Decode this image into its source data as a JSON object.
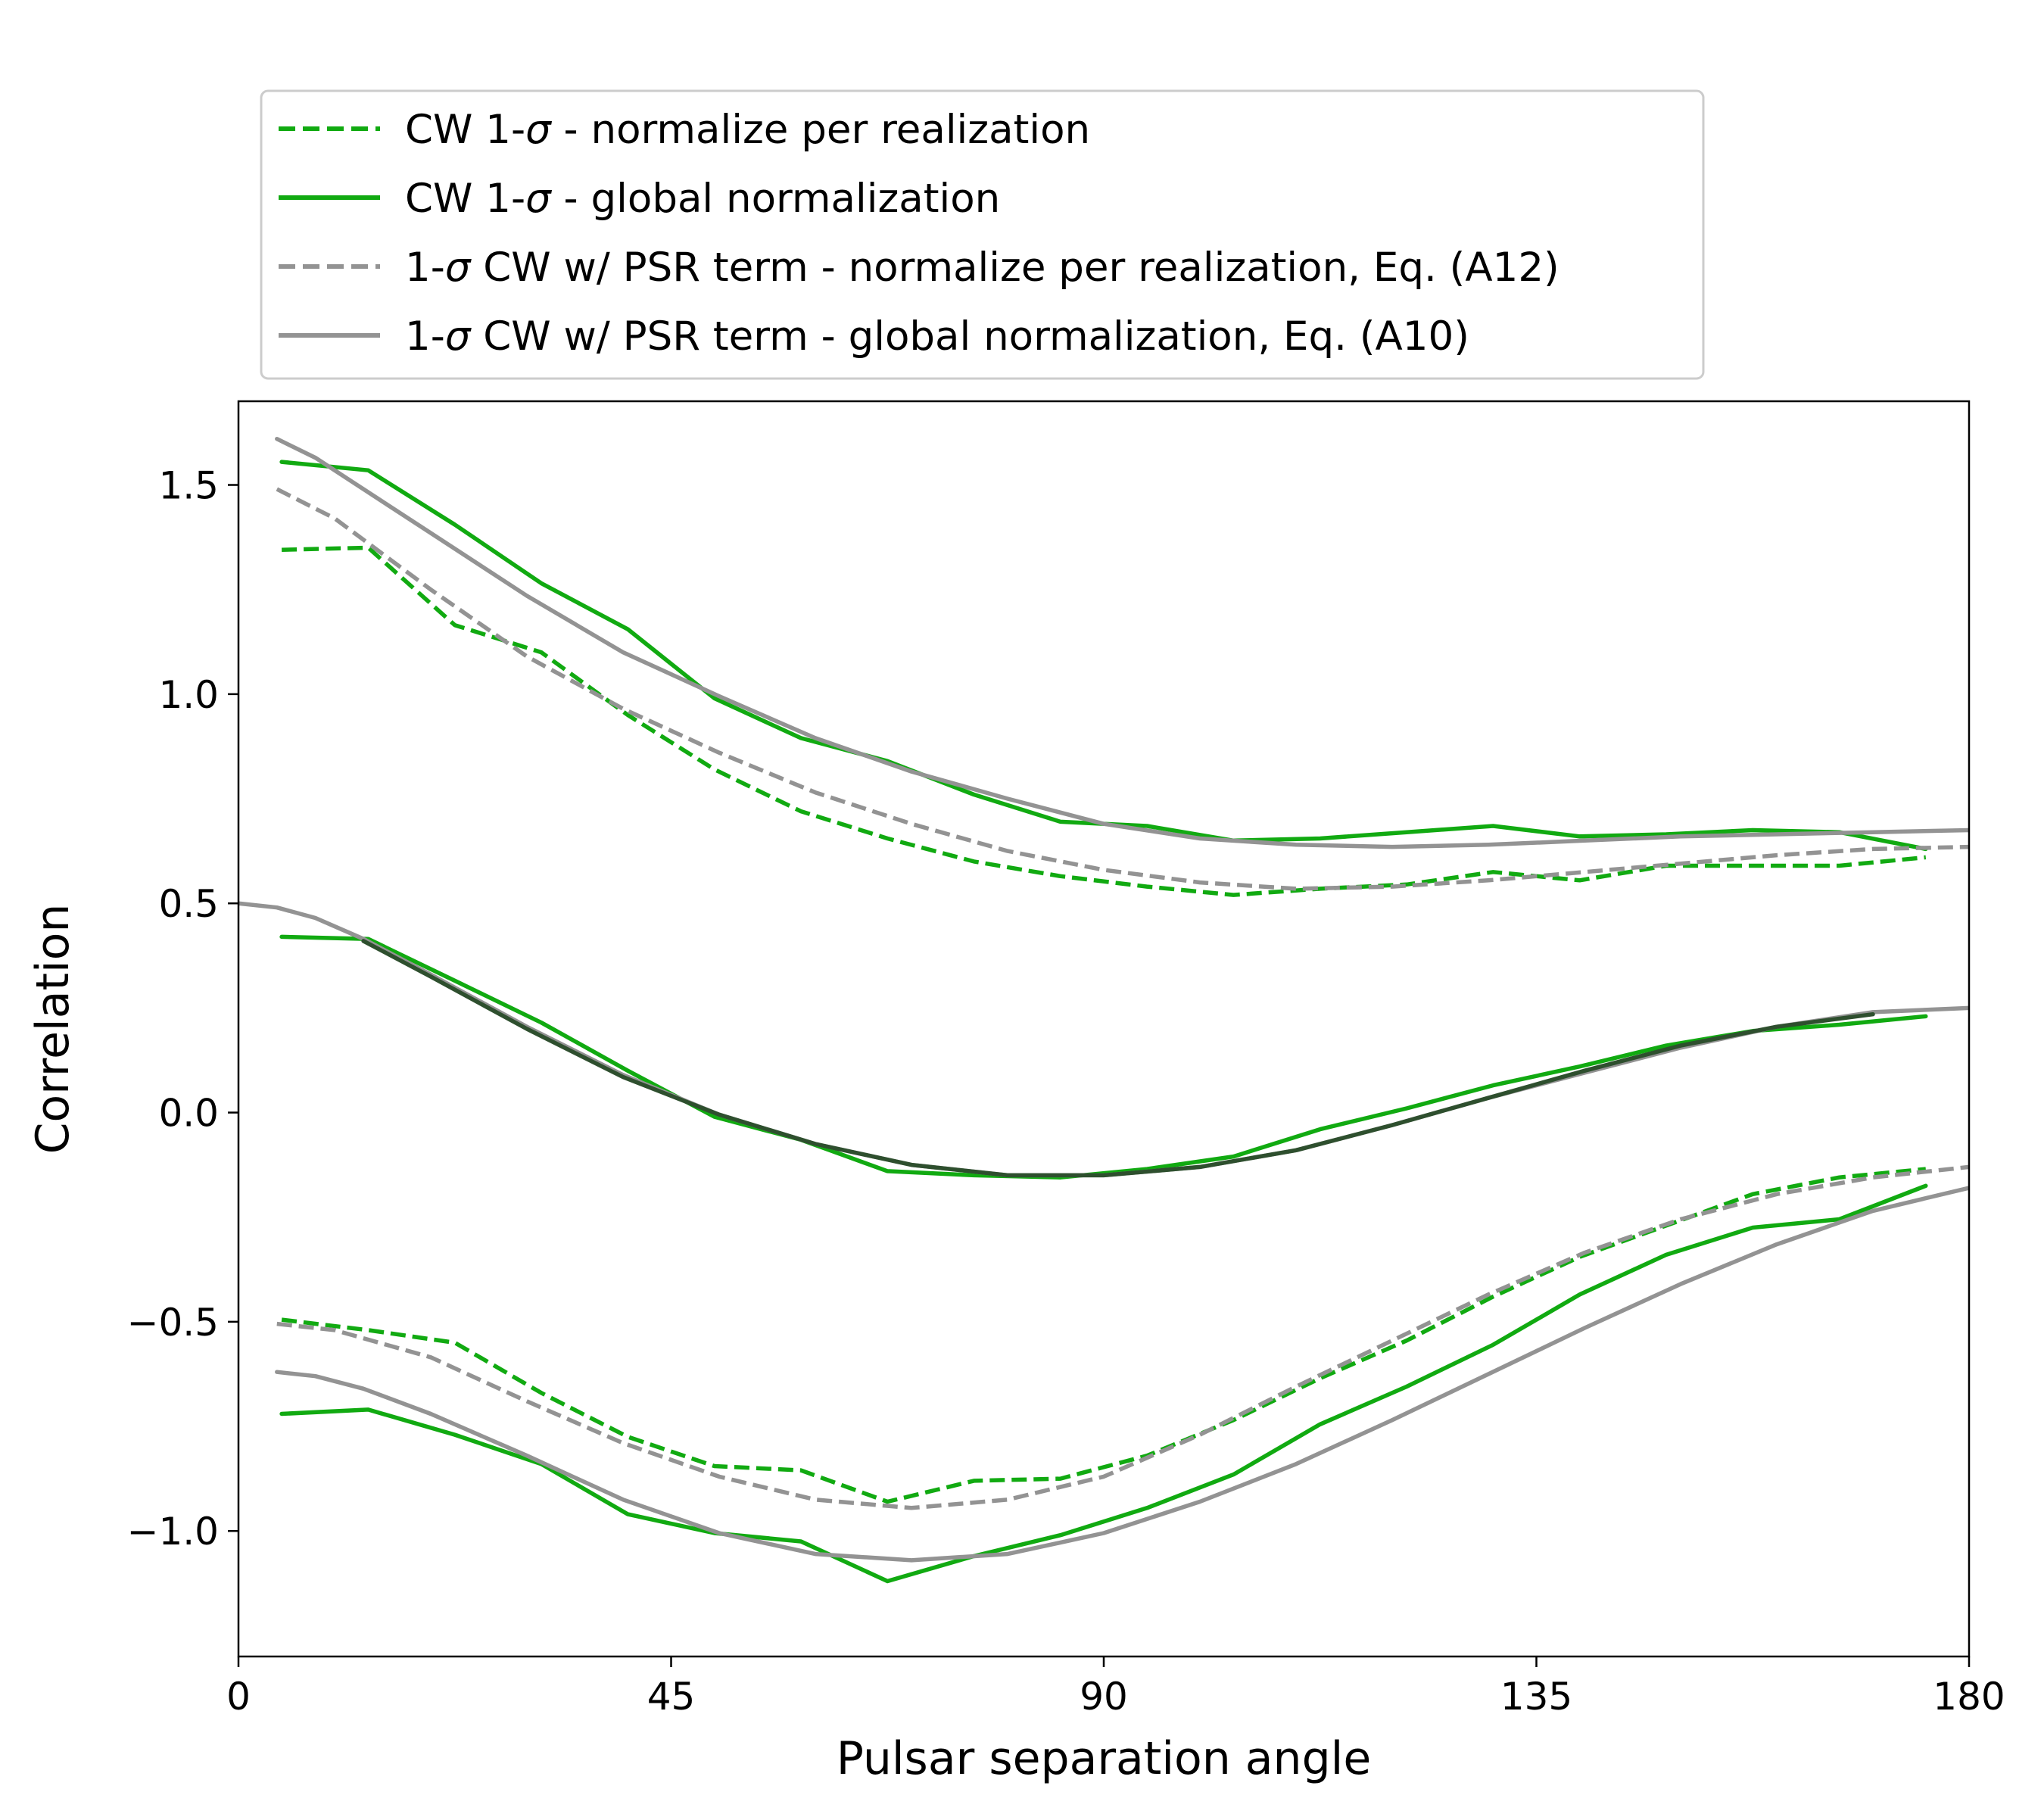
{
  "chart_data": {
    "type": "line",
    "xlabel": "Pulsar separation angle",
    "ylabel": "Correlation",
    "xlim": [
      0,
      180
    ],
    "ylim": [
      -1.3,
      1.7
    ],
    "xticks": [
      0,
      45,
      90,
      135,
      180
    ],
    "yticks": [
      1.5,
      1.0,
      0.5,
      0.0,
      -0.5,
      -1.0
    ],
    "xtick_labels": [
      "0",
      "45",
      "90",
      "135",
      "180"
    ],
    "ytick_labels": [
      "1.5",
      "1.0",
      "0.5",
      "0.0",
      "−0.5",
      "−1.0"
    ],
    "grid": false,
    "legend_placement": "above plot",
    "colors": {
      "green": "#11aa11",
      "gray": "#939393",
      "dark": "#2e4f2e"
    },
    "legend": [
      {
        "label_pre": "CW 1-",
        "label_sym": "σ",
        "label_post": " - normalize per realization",
        "color": "#11aa11",
        "dash": true
      },
      {
        "label_pre": "CW 1-",
        "label_sym": "σ",
        "label_post": " - global normalization",
        "color": "#11aa11",
        "dash": false
      },
      {
        "label_pre": "1-",
        "label_sym": "σ",
        "label_post": " CW w/ PSR term - normalize per realization, Eq. (A12)",
        "color": "#939393",
        "dash": true
      },
      {
        "label_pre": "1-",
        "label_sym": "σ",
        "label_post": " CW w/ PSR term - global normalization, Eq. (A10)",
        "color": "#939393",
        "dash": false
      }
    ],
    "series": [
      {
        "color": "#11aa11",
        "dash": true,
        "x": [
          4.5,
          13.5,
          22.5,
          31.5,
          40.5,
          49.5,
          58.5,
          67.5,
          76.5,
          85.5,
          94.5,
          103.5,
          112.5,
          121.5,
          130.5,
          139.5,
          148.5,
          157.5,
          166.5,
          175.5
        ],
        "y": [
          1.345,
          1.35,
          1.165,
          1.1,
          0.95,
          0.82,
          0.72,
          0.655,
          0.6,
          0.565,
          0.54,
          0.52,
          0.535,
          0.545,
          0.575,
          0.555,
          0.59,
          0.59,
          0.59,
          0.61
        ]
      },
      {
        "color": "#11aa11",
        "dash": false,
        "x": [
          4.5,
          13.5,
          22.5,
          31.5,
          40.5,
          49.5,
          58.5,
          67.5,
          76.5,
          85.5,
          94.5,
          103.5,
          112.5,
          121.5,
          130.5,
          139.5,
          148.5,
          157.5,
          166.5,
          175.5
        ],
        "y": [
          1.555,
          1.535,
          1.405,
          1.265,
          1.155,
          0.99,
          0.895,
          0.84,
          0.76,
          0.695,
          0.685,
          0.65,
          0.655,
          0.67,
          0.685,
          0.66,
          0.665,
          0.675,
          0.67,
          0.63
        ]
      },
      {
        "color": "#939393",
        "dash": true,
        "x": [
          4,
          10,
          20,
          30,
          40,
          50,
          60,
          70,
          80,
          90,
          100,
          110,
          120,
          130,
          140,
          150,
          160,
          170,
          180
        ],
        "y": [
          1.49,
          1.42,
          1.25,
          1.09,
          0.965,
          0.86,
          0.765,
          0.69,
          0.625,
          0.58,
          0.55,
          0.535,
          0.54,
          0.555,
          0.575,
          0.595,
          0.615,
          0.63,
          0.635
        ]
      },
      {
        "color": "#939393",
        "dash": false,
        "x": [
          4,
          8,
          13,
          20,
          30,
          40,
          50,
          60,
          70,
          80,
          90,
          100,
          110,
          120,
          130,
          140,
          150,
          160,
          170,
          180
        ],
        "y": [
          1.61,
          1.565,
          1.49,
          1.385,
          1.235,
          1.1,
          0.995,
          0.895,
          0.815,
          0.75,
          0.69,
          0.655,
          0.64,
          0.635,
          0.64,
          0.65,
          0.66,
          0.665,
          0.67,
          0.675
        ]
      },
      {
        "color": "#11aa11",
        "dash": false,
        "x": [
          4.5,
          13.5,
          22.5,
          31.5,
          40.5,
          49.5,
          58.5,
          67.5,
          76.5,
          85.5,
          94.5,
          103.5,
          112.5,
          121.5,
          130.5,
          139.5,
          148.5,
          157.5,
          166.5,
          175.5
        ],
        "y": [
          0.42,
          0.415,
          0.315,
          0.215,
          0.1,
          -0.01,
          -0.065,
          -0.14,
          -0.15,
          -0.155,
          -0.135,
          -0.105,
          -0.04,
          0.01,
          0.065,
          0.11,
          0.16,
          0.195,
          0.21,
          0.23
        ]
      },
      {
        "color": "#939393",
        "dash": false,
        "x": [
          0,
          4,
          8,
          13,
          20,
          30,
          40,
          50,
          60,
          70,
          80,
          90,
          100,
          110,
          120,
          130,
          140,
          150,
          160,
          170,
          180
        ],
        "y": [
          0.5,
          0.49,
          0.465,
          0.415,
          0.33,
          0.205,
          0.09,
          -0.005,
          -0.075,
          -0.125,
          -0.15,
          -0.15,
          -0.13,
          -0.09,
          -0.03,
          0.035,
          0.095,
          0.155,
          0.205,
          0.24,
          0.25
        ]
      },
      {
        "color": "#2e4f2e",
        "dash": false,
        "x": [
          13,
          20,
          30,
          40,
          50,
          60,
          70,
          80,
          90,
          100,
          110,
          120,
          130,
          140,
          150,
          160,
          170
        ],
        "y": [
          0.41,
          0.325,
          0.2,
          0.085,
          -0.005,
          -0.075,
          -0.125,
          -0.15,
          -0.15,
          -0.13,
          -0.09,
          -0.03,
          0.035,
          0.1,
          0.16,
          0.205,
          0.235
        ]
      },
      {
        "color": "#11aa11",
        "dash": true,
        "x": [
          4.5,
          13.5,
          22.5,
          31.5,
          40.5,
          49.5,
          58.5,
          67.5,
          76.5,
          85.5,
          94.5,
          103.5,
          112.5,
          121.5,
          130.5,
          139.5,
          148.5,
          157.5,
          166.5,
          175.5
        ],
        "y": [
          -0.495,
          -0.52,
          -0.55,
          -0.67,
          -0.775,
          -0.845,
          -0.855,
          -0.93,
          -0.88,
          -0.875,
          -0.82,
          -0.735,
          -0.635,
          -0.545,
          -0.44,
          -0.345,
          -0.27,
          -0.195,
          -0.155,
          -0.135
        ]
      },
      {
        "color": "#939393",
        "dash": true,
        "x": [
          4,
          10,
          20,
          30,
          40,
          50,
          60,
          70,
          80,
          90,
          100,
          110,
          120,
          130,
          140,
          150,
          160,
          170,
          180
        ],
        "y": [
          -0.505,
          -0.52,
          -0.585,
          -0.69,
          -0.79,
          -0.87,
          -0.925,
          -0.945,
          -0.925,
          -0.87,
          -0.77,
          -0.655,
          -0.545,
          -0.435,
          -0.335,
          -0.255,
          -0.195,
          -0.155,
          -0.13
        ]
      },
      {
        "color": "#11aa11",
        "dash": false,
        "x": [
          4.5,
          13.5,
          22.5,
          31.5,
          40.5,
          49.5,
          58.5,
          67.5,
          76.5,
          85.5,
          94.5,
          103.5,
          112.5,
          121.5,
          130.5,
          139.5,
          148.5,
          157.5,
          166.5,
          175.5
        ],
        "y": [
          -0.72,
          -0.71,
          -0.77,
          -0.84,
          -0.96,
          -1.005,
          -1.025,
          -1.12,
          -1.06,
          -1.01,
          -0.945,
          -0.865,
          -0.745,
          -0.655,
          -0.555,
          -0.435,
          -0.34,
          -0.275,
          -0.255,
          -0.175
        ]
      },
      {
        "color": "#939393",
        "dash": false,
        "x": [
          4,
          8,
          13,
          20,
          30,
          40,
          50,
          60,
          70,
          80,
          90,
          100,
          110,
          120,
          130,
          140,
          150,
          160,
          170,
          180
        ],
        "y": [
          -0.62,
          -0.63,
          -0.66,
          -0.72,
          -0.82,
          -0.925,
          -1.005,
          -1.055,
          -1.07,
          -1.055,
          -1.005,
          -0.93,
          -0.84,
          -0.735,
          -0.625,
          -0.515,
          -0.41,
          -0.315,
          -0.235,
          -0.18
        ]
      }
    ]
  }
}
